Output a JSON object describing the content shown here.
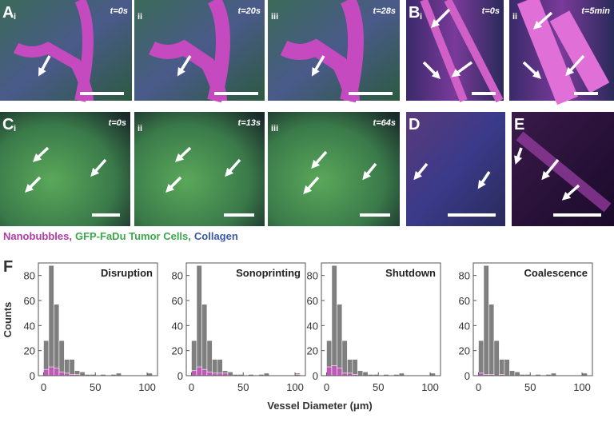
{
  "figure": {
    "panels": [
      {
        "label": "A",
        "sub": "i",
        "time": "t=0s"
      },
      {
        "sub": "ii",
        "time": "t=20s"
      },
      {
        "sub": "iii",
        "time": "t=28s"
      },
      {
        "label": "B",
        "sub": "i",
        "time": "t=0s"
      },
      {
        "sub": "ii",
        "time": "t=5min"
      },
      {
        "label": "C",
        "sub": "i",
        "time": "t=0s"
      },
      {
        "sub": "ii",
        "time": "t=13s"
      },
      {
        "sub": "iii",
        "time": "t=64s"
      },
      {
        "label": "D"
      },
      {
        "label": "E"
      }
    ],
    "legend": [
      {
        "text": "Nanobubbles,",
        "color": "#b03aa8"
      },
      {
        "text": "GFP-FaDu Tumor Cells,",
        "color": "#3aa84a"
      },
      {
        "text": "Collagen",
        "color": "#3a56a8"
      }
    ],
    "histogram_label": "F",
    "ylabel": "Counts",
    "xlabel": "Vessel Diameter (μm)"
  },
  "chart_data": [
    {
      "type": "histogram",
      "title": "Disruption",
      "bins": [
        0,
        5,
        10,
        15,
        20,
        25,
        30,
        35,
        40,
        45,
        50,
        55,
        60,
        65,
        70,
        75,
        80,
        85,
        90,
        95,
        100,
        105
      ],
      "series": [
        {
          "color": "#7f7f7f",
          "values": [
            28,
            88,
            57,
            28,
            13,
            13,
            4,
            3,
            1,
            1,
            0,
            1,
            0,
            1,
            2,
            0,
            0,
            0,
            0,
            0,
            2
          ]
        },
        {
          "color": "#c05ab8",
          "values": [
            5,
            7,
            6,
            3,
            2,
            1,
            1,
            0,
            0,
            0,
            0,
            0,
            0,
            0,
            0,
            0,
            0,
            0,
            0,
            0,
            0
          ]
        }
      ],
      "xlim": [
        -5,
        110
      ],
      "ylim": [
        0,
        90
      ],
      "xticks": [
        0,
        50,
        100
      ],
      "yticks": [
        0,
        20,
        40,
        60,
        80
      ]
    },
    {
      "type": "histogram",
      "title": "Sonoprinting",
      "bins": [
        0,
        5,
        10,
        15,
        20,
        25,
        30,
        35,
        40,
        45,
        50,
        55,
        60,
        65,
        70,
        75,
        80,
        85,
        90,
        95,
        100,
        105
      ],
      "series": [
        {
          "color": "#7f7f7f",
          "values": [
            28,
            88,
            57,
            28,
            13,
            13,
            4,
            3,
            1,
            1,
            0,
            1,
            0,
            1,
            2,
            0,
            0,
            0,
            0,
            0,
            2
          ]
        },
        {
          "color": "#c05ab8",
          "values": [
            4,
            7,
            5,
            3,
            2,
            2,
            2,
            0,
            0,
            0,
            0,
            0,
            0,
            0,
            0,
            0,
            0,
            0,
            0,
            0,
            1
          ]
        }
      ],
      "xlim": [
        -5,
        110
      ],
      "ylim": [
        0,
        90
      ],
      "xticks": [
        0,
        50,
        100
      ],
      "yticks": [
        0,
        20,
        40,
        60,
        80
      ]
    },
    {
      "type": "histogram",
      "title": "Shutdown",
      "bins": [
        0,
        5,
        10,
        15,
        20,
        25,
        30,
        35,
        40,
        45,
        50,
        55,
        60,
        65,
        70,
        75,
        80,
        85,
        90,
        95,
        100,
        105
      ],
      "series": [
        {
          "color": "#7f7f7f",
          "values": [
            28,
            88,
            57,
            28,
            13,
            13,
            4,
            3,
            1,
            1,
            0,
            1,
            0,
            1,
            2,
            0,
            0,
            0,
            0,
            0,
            2
          ]
        },
        {
          "color": "#c05ab8",
          "values": [
            7,
            8,
            6,
            2,
            2,
            1,
            0,
            0,
            0,
            0,
            0,
            0,
            0,
            0,
            0,
            0,
            0,
            0,
            0,
            0,
            0
          ]
        }
      ],
      "xlim": [
        -5,
        110
      ],
      "ylim": [
        0,
        90
      ],
      "xticks": [
        0,
        50,
        100
      ],
      "yticks": [
        0,
        20,
        40,
        60,
        80
      ]
    },
    {
      "type": "histogram",
      "title": "Coalescence",
      "bins": [
        0,
        5,
        10,
        15,
        20,
        25,
        30,
        35,
        40,
        45,
        50,
        55,
        60,
        65,
        70,
        75,
        80,
        85,
        90,
        95,
        100,
        105
      ],
      "series": [
        {
          "color": "#7f7f7f",
          "values": [
            28,
            88,
            57,
            28,
            13,
            13,
            4,
            3,
            1,
            1,
            0,
            1,
            0,
            1,
            2,
            0,
            0,
            0,
            0,
            0,
            2
          ]
        },
        {
          "color": "#c05ab8",
          "values": [
            2,
            1,
            1,
            0,
            1,
            0,
            0,
            0,
            0,
            0,
            0,
            0,
            0,
            0,
            0,
            0,
            0,
            0,
            0,
            0,
            0
          ]
        }
      ],
      "xlim": [
        -5,
        110
      ],
      "ylim": [
        0,
        90
      ],
      "xticks": [
        0,
        50,
        100
      ],
      "yticks": [
        0,
        20,
        40,
        60,
        80
      ]
    }
  ]
}
